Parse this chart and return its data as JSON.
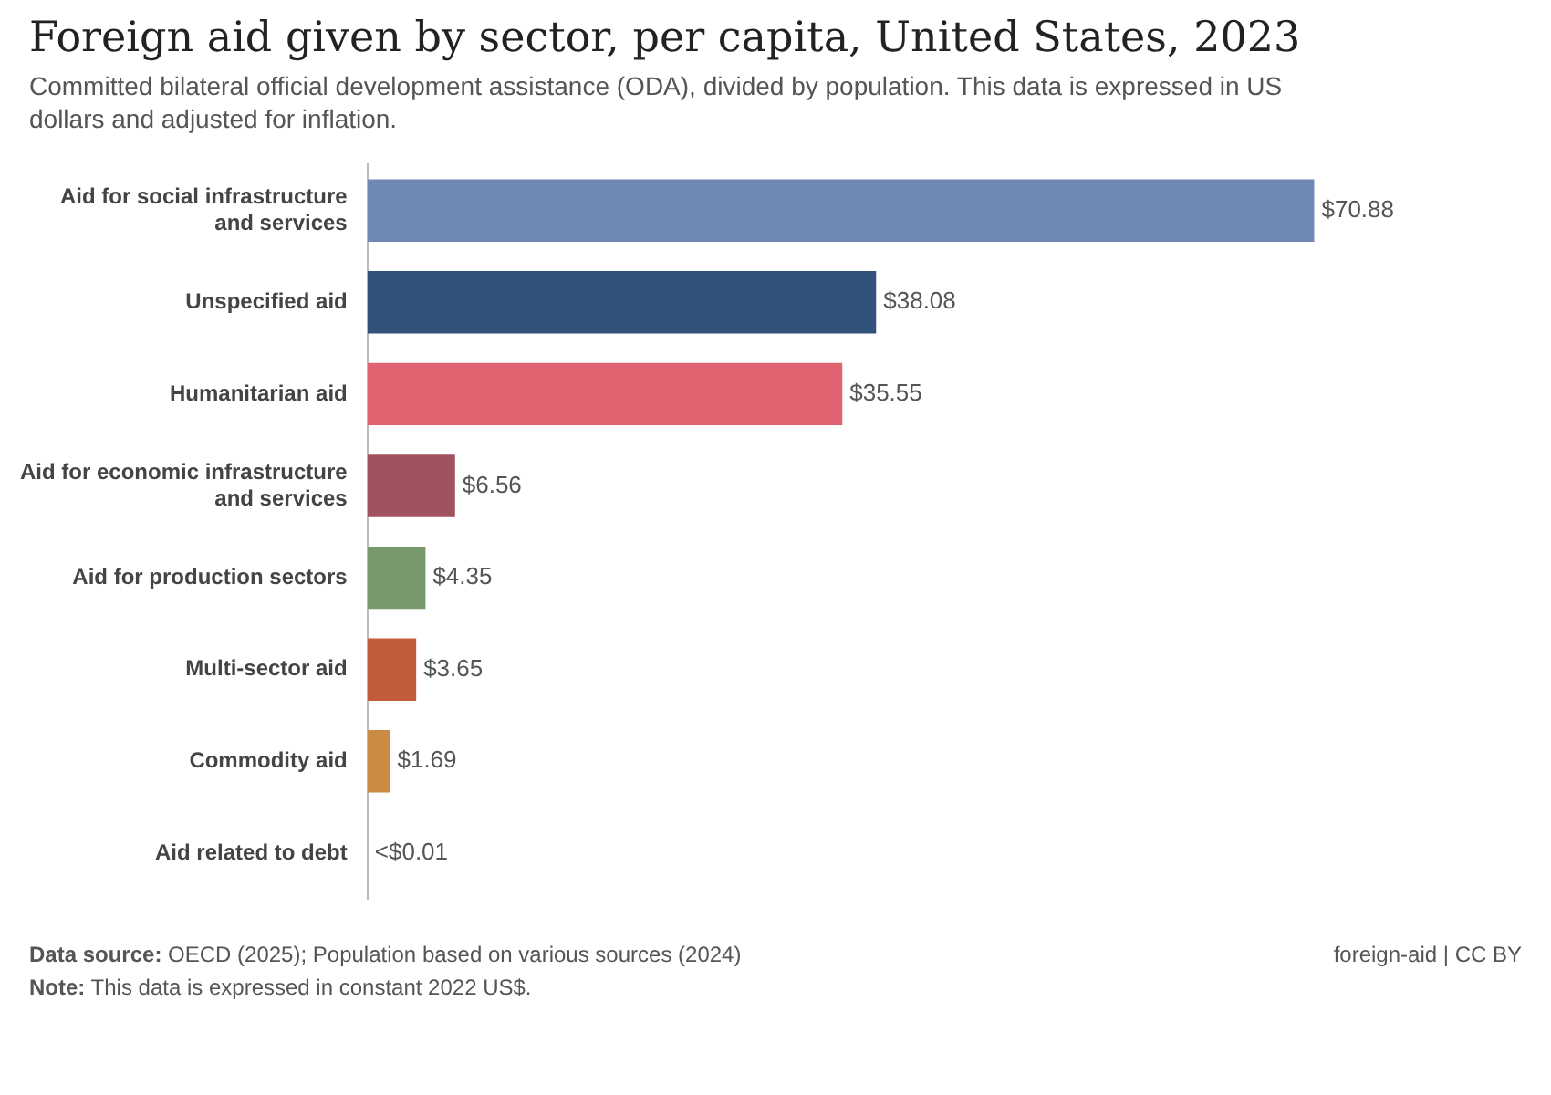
{
  "chart_data": {
    "type": "bar",
    "orientation": "horizontal",
    "title": "Foreign aid given by sector, per capita, United States, 2023",
    "subtitle": "Committed bilateral official development assistance (ODA), divided by population. This data is expressed in US dollars and adjusted for inflation.",
    "categories": [
      "Aid for social infrastructure and services",
      "Unspecified aid",
      "Humanitarian aid",
      "Aid for economic infrastructure and services",
      "Aid for production sectors",
      "Multi-sector aid",
      "Commodity aid",
      "Aid related to debt"
    ],
    "values": [
      70.88,
      38.08,
      35.55,
      6.56,
      4.35,
      3.65,
      1.69,
      0.005
    ],
    "colors": [
      "#6f89b2",
      "#30527b",
      "#e06371",
      "#a0535e",
      "#77996b",
      "#c15d3a",
      "#cc8b45",
      "#999999"
    ],
    "value_labels": [
      "$70.88",
      "$38.08",
      "$35.55",
      "$6.56",
      "$4.35",
      "$3.65",
      "$1.69",
      "<$0.01"
    ],
    "legend": false,
    "annotations": [
      "Data source: OECD (2025); Population based on various sources (2024)",
      "foreign-aid | CC BY",
      "Note: This data is expressed in constant 2022 US$."
    ]
  }
}
